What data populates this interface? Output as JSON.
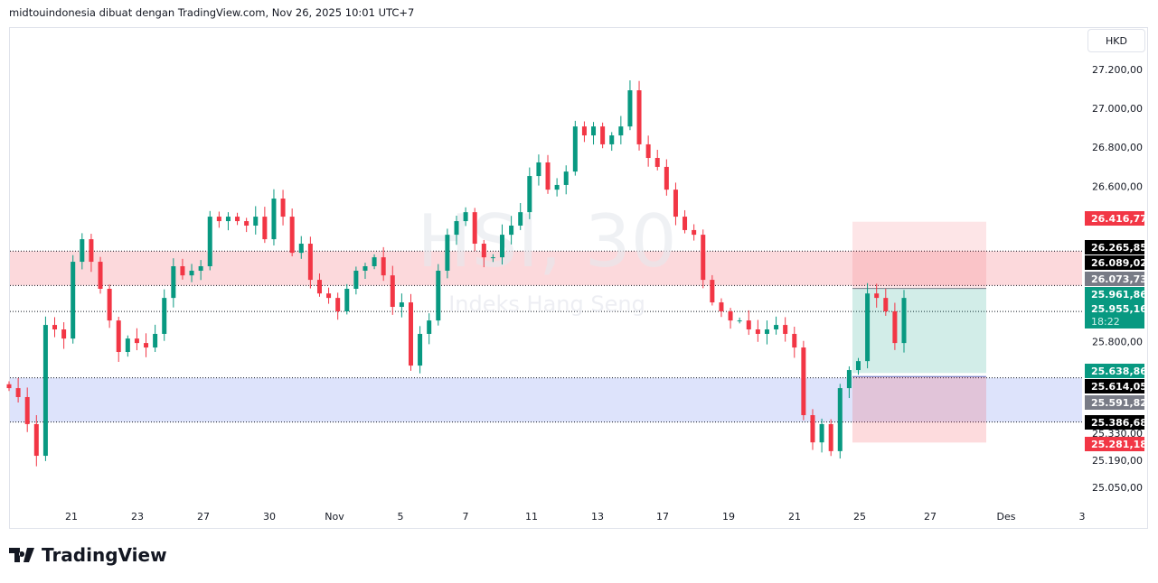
{
  "header": {
    "attribution": "midtouindonesia dibuat dengan TradingView.com, Nov 26, 2025 10:01 UTC+7"
  },
  "currency": "HKD",
  "watermark": {
    "symbol": "HSI, 30",
    "name": "Indeks Hang Seng"
  },
  "brand": "TradingView",
  "chart_data": {
    "type": "candlestick",
    "ylim": [
      25050,
      27200
    ],
    "y_ticks": [
      "27.200,00",
      "27.000,00",
      "26.800,00",
      "26.600,00",
      "25.800,00",
      "25.330,00",
      "25.190,00",
      "25.050,00"
    ],
    "y_tick_values": [
      27200,
      27000,
      26800,
      26600,
      25800,
      25330,
      25190,
      25050
    ],
    "x_ticks": [
      "21",
      "23",
      "27",
      "30",
      "Nov",
      "5",
      "7",
      "11",
      "13",
      "17",
      "19",
      "21",
      "25",
      "27",
      "Des",
      "3"
    ],
    "closes": [
      25561,
      25515,
      25376,
      25213,
      25886,
      25863,
      25816,
      26211,
      26327,
      26211,
      26072,
      25909,
      25747,
      25816,
      25793,
      25770,
      25840,
      26025,
      26188,
      26141,
      26165,
      26188,
      26443,
      26420,
      26443,
      26420,
      26397,
      26443,
      26327,
      26536,
      26443,
      26257,
      26304,
      26118,
      26048,
      26025,
      25956,
      26072,
      26165,
      26188,
      26234,
      26141,
      25979,
      26002,
      25677,
      25840,
      25909,
      26165,
      26350,
      26420,
      26466,
      26304,
      26234,
      26234,
      26350,
      26397,
      26466,
      26652,
      26722,
      26582,
      26606,
      26675,
      26907,
      26861,
      26907,
      26815,
      26861,
      26907,
      27093,
      26815,
      26745,
      26699,
      26582,
      26443,
      26374,
      26350,
      26118,
      26002,
      25956,
      25909,
      25909,
      25863,
      25840,
      25863,
      25886,
      25840,
      25770,
      25422,
      25282,
      25376,
      25237,
      25561,
      25654,
      25700,
      26048,
      26025,
      25956,
      25793,
      26025
    ],
    "zones": [
      {
        "from": 26089.02,
        "to": 26265.85,
        "color": "#f7a1a8"
      },
      {
        "from": 25386.68,
        "to": 25614.05,
        "color": "#a9b8f5"
      }
    ],
    "position": {
      "stop": 26416.77,
      "entry": 26073.73,
      "target": 25638.86,
      "lower": 25281.18
    },
    "price_labels": [
      {
        "text": "26.416,77",
        "value": 26416.77,
        "bg": "#f23645",
        "fg": "#ffffff"
      },
      {
        "text": "26.265,85",
        "value": 26265.85,
        "bg": "#000000",
        "fg": "#ffffff"
      },
      {
        "text": "26.089,02",
        "value": 26089.02,
        "bg": "#000000",
        "fg": "#ffffff"
      },
      {
        "text": "26.073,73",
        "value": 26073.73,
        "bg": "#787b86",
        "fg": "#ffffff"
      },
      {
        "text": "25.961,86",
        "value": 25961.86,
        "bg": "#089981",
        "fg": "#ffffff"
      },
      {
        "text": "25.955,16",
        "value": 25955.16,
        "bg": "#089981",
        "fg": "#ffffff",
        "sub": "18:22"
      },
      {
        "text": "25.638,86",
        "value": 25638.86,
        "bg": "#089981",
        "fg": "#ffffff"
      },
      {
        "text": "25.614,05",
        "value": 25614.05,
        "bg": "#000000",
        "fg": "#ffffff"
      },
      {
        "text": "25.591,82",
        "value": 25591.82,
        "bg": "#787b86",
        "fg": "#ffffff"
      },
      {
        "text": "25.386,68",
        "value": 25386.68,
        "bg": "#000000",
        "fg": "#ffffff"
      },
      {
        "text": "25.281,18",
        "value": 25281.18,
        "bg": "#f23645",
        "fg": "#ffffff"
      }
    ],
    "colors": {
      "up": "#089981",
      "down": "#f23645"
    }
  }
}
